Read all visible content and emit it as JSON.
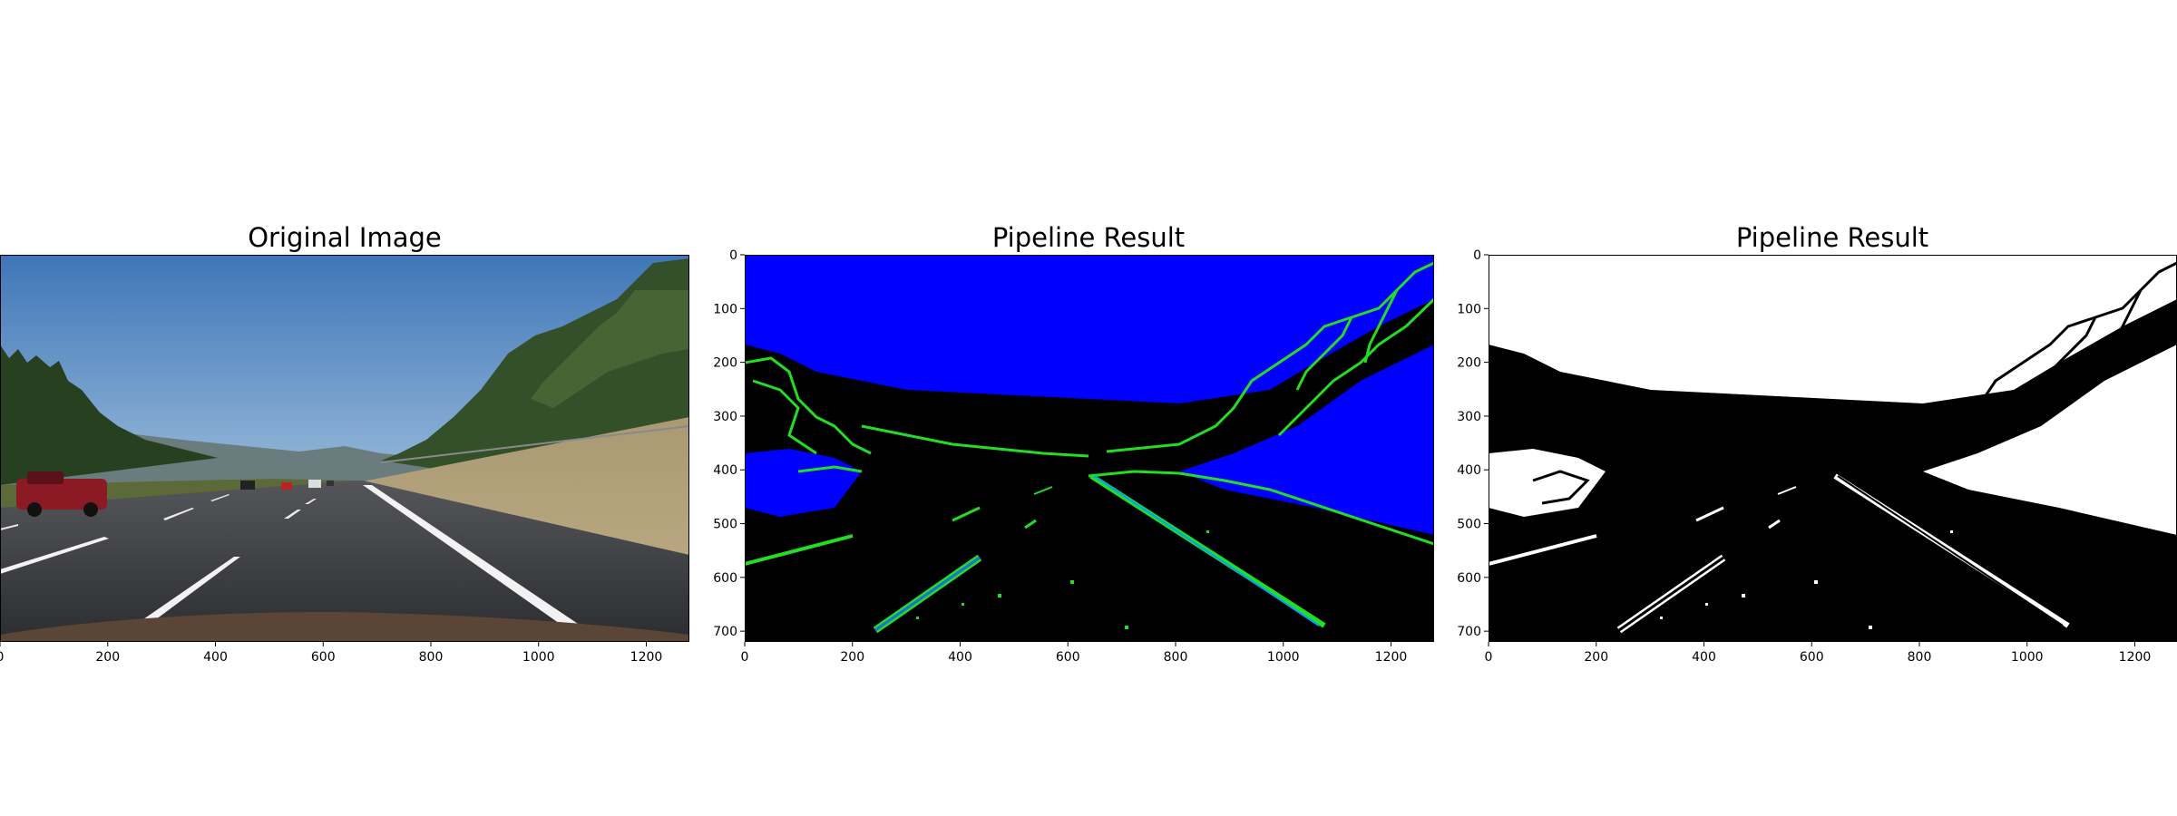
{
  "panels": [
    {
      "title": "Original Image",
      "kind": "photo",
      "xticks": [
        "0",
        "200",
        "400",
        "600",
        "800",
        "1000",
        "1200"
      ],
      "yticks": []
    },
    {
      "title": "Pipeline Result",
      "kind": "color-threshold",
      "xticks": [
        "0",
        "200",
        "400",
        "600",
        "800",
        "1000",
        "1200"
      ],
      "yticks": [
        "0",
        "100",
        "200",
        "300",
        "400",
        "500",
        "600",
        "700"
      ]
    },
    {
      "title": "Pipeline Result",
      "kind": "binary-threshold",
      "xticks": [
        "0",
        "200",
        "400",
        "600",
        "800",
        "1000",
        "1200"
      ],
      "yticks": [
        "0",
        "100",
        "200",
        "300",
        "400",
        "500",
        "600",
        "700"
      ]
    }
  ],
  "colors": {
    "sky": "#4f86c6",
    "road": "#3a3b40",
    "threshold_blue": "#0000ff",
    "threshold_green": "#22dd22",
    "binary_white": "#ffffff",
    "binary_black": "#000000"
  }
}
